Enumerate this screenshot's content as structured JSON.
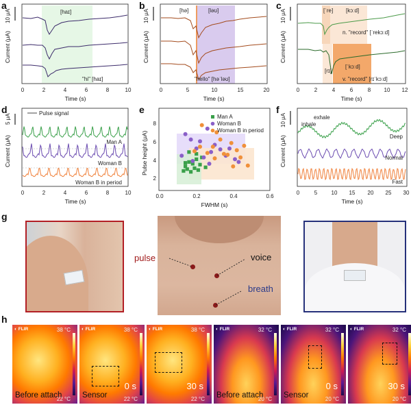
{
  "panels": {
    "a": {
      "letter": "a",
      "ylabel": "Current (μA)",
      "xlabel": "Time (s)",
      "scale": "10 μA",
      "xticks": [
        "0",
        "2",
        "4",
        "6",
        "8",
        "10"
      ],
      "label_top": "[haɪ]",
      "label_bottom": "\"hi\" [haɪ]"
    },
    "b": {
      "letter": "b",
      "ylabel": "Current (μA)",
      "xlabel": "Time (s)",
      "scale": "10 μA",
      "xticks": [
        "0",
        "5",
        "10",
        "15",
        "20"
      ],
      "label_left": "[hə]",
      "label_right": "[ləʊ]",
      "label_bottom": "\"hello\" [həˈləʊ]"
    },
    "c": {
      "letter": "c",
      "ylabel": "Current (μA)",
      "xlabel": "Time (s)",
      "scale": "10 μA",
      "xticks": [
        "0",
        "2",
        "4",
        "6",
        "8",
        "10",
        "12"
      ],
      "label_re": "[ˈre]",
      "label_kod_top": "[kɔːd]",
      "label_n": "n. \"record\" [ˈrekɔːd]",
      "label_ri": "[rɪ]",
      "label_kod_bot": "[ˈkɔːd]",
      "label_v": "v. \"record\" [rɪˈkɔːd]"
    },
    "d": {
      "letter": "d",
      "ylabel": "Current (μA)",
      "xlabel": "Time (s)",
      "scale": "5 μA",
      "xticks": [
        "0",
        "2",
        "4",
        "6",
        "8",
        "10"
      ],
      "legend": "Pulse signal",
      "s1": "Man A",
      "s2": "Woman B",
      "s3": "Woman B in period"
    },
    "e": {
      "letter": "e",
      "ylabel": "Pulse height (μA)",
      "xlabel": "FWHM (s)",
      "xticks": [
        "0.0",
        "0.2",
        "0.4",
        "0.6"
      ],
      "yticks": [
        "2",
        "4",
        "6",
        "8"
      ],
      "legend": [
        "Man A",
        "Woman B",
        "Woman B in period"
      ]
    },
    "f": {
      "letter": "f",
      "ylabel": "Current (μA)",
      "xlabel": "Time (s)",
      "scale": "10 μA",
      "xticks": [
        "0",
        "5",
        "10",
        "15",
        "20",
        "25",
        "30"
      ],
      "inhale": "inhale",
      "exhale": "exhale",
      "s1": "Deep",
      "s2": "Normal",
      "s3": "Fast"
    },
    "g": {
      "letter": "g",
      "pulse": "pulse",
      "voice": "voice",
      "breath": "breath"
    },
    "h": {
      "letter": "h",
      "flir": "FLIR",
      "tiles": [
        {
          "label": "Before attach",
          "tmax": "38 °C",
          "tmin": "22 °C"
        },
        {
          "label": "Sensor",
          "time": "0 s",
          "tmax": "38 °C",
          "tmin": "22 °C"
        },
        {
          "label": "",
          "time": "30 s",
          "tmax": "38 °C",
          "tmin": "22 °C"
        },
        {
          "label": "Before attach",
          "tmax": "32 °C",
          "tmin": "20 °C"
        },
        {
          "label": "Sensor",
          "time": "0 s",
          "tmax": "32 °C",
          "tmin": "20 °C"
        },
        {
          "label": "",
          "time": "30 s",
          "tmax": "32 °C",
          "tmin": "20 °C"
        }
      ]
    }
  },
  "chart_data": [
    {
      "type": "line",
      "panel": "a",
      "x_range": [
        0,
        10
      ],
      "series": [
        {
          "values_hint": "three stacked current traces"
        }
      ]
    },
    {
      "type": "scatter",
      "panel": "e",
      "xlabel": "FWHM (s)",
      "ylabel": "Pulse height (μA)",
      "xlim": [
        0,
        0.6
      ],
      "ylim": [
        0,
        9
      ],
      "series": [
        {
          "name": "Man A",
          "color": "#3aa04a",
          "points": [
            [
              0.13,
              2.1
            ],
            [
              0.14,
              2.6
            ],
            [
              0.15,
              2.3
            ],
            [
              0.16,
              3.1
            ],
            [
              0.17,
              2.0
            ],
            [
              0.18,
              2.9
            ],
            [
              0.19,
              2.4
            ],
            [
              0.2,
              3.4
            ],
            [
              0.21,
              2.2
            ],
            [
              0.22,
              2.8
            ],
            [
              0.23,
              3.6
            ],
            [
              0.16,
              4.2
            ],
            [
              0.14,
              3.0
            ],
            [
              0.2,
              4.0
            ],
            [
              0.25,
              2.5
            ]
          ]
        },
        {
          "name": "Woman B",
          "color": "#8a5fc8",
          "points": [
            [
              0.12,
              3.8
            ],
            [
              0.14,
              6.2
            ],
            [
              0.17,
              5.6
            ],
            [
              0.2,
              4.6
            ],
            [
              0.22,
              5.4
            ],
            [
              0.24,
              3.6
            ],
            [
              0.26,
              6.8
            ],
            [
              0.28,
              4.2
            ],
            [
              0.3,
              5.0
            ],
            [
              0.33,
              4.5
            ],
            [
              0.36,
              3.8
            ],
            [
              0.38,
              4.6
            ],
            [
              0.41,
              3.4
            ],
            [
              0.43,
              3.1
            ],
            [
              0.18,
              3.2
            ],
            [
              0.27,
              2.9
            ]
          ]
        },
        {
          "name": "Woman B in period",
          "color": "#f0903a",
          "points": [
            [
              0.19,
              4.3
            ],
            [
              0.23,
              7.2
            ],
            [
              0.26,
              4.1
            ],
            [
              0.29,
              4.8
            ],
            [
              0.31,
              6.4
            ],
            [
              0.33,
              5.6
            ],
            [
              0.35,
              4.0
            ],
            [
              0.37,
              3.9
            ],
            [
              0.39,
              5.2
            ],
            [
              0.42,
              4.4
            ],
            [
              0.44,
              3.6
            ],
            [
              0.46,
              4.9
            ],
            [
              0.48,
              2.7
            ],
            [
              0.3,
              3.5
            ],
            [
              0.4,
              2.6
            ],
            [
              0.22,
              4.8
            ]
          ]
        }
      ]
    }
  ]
}
